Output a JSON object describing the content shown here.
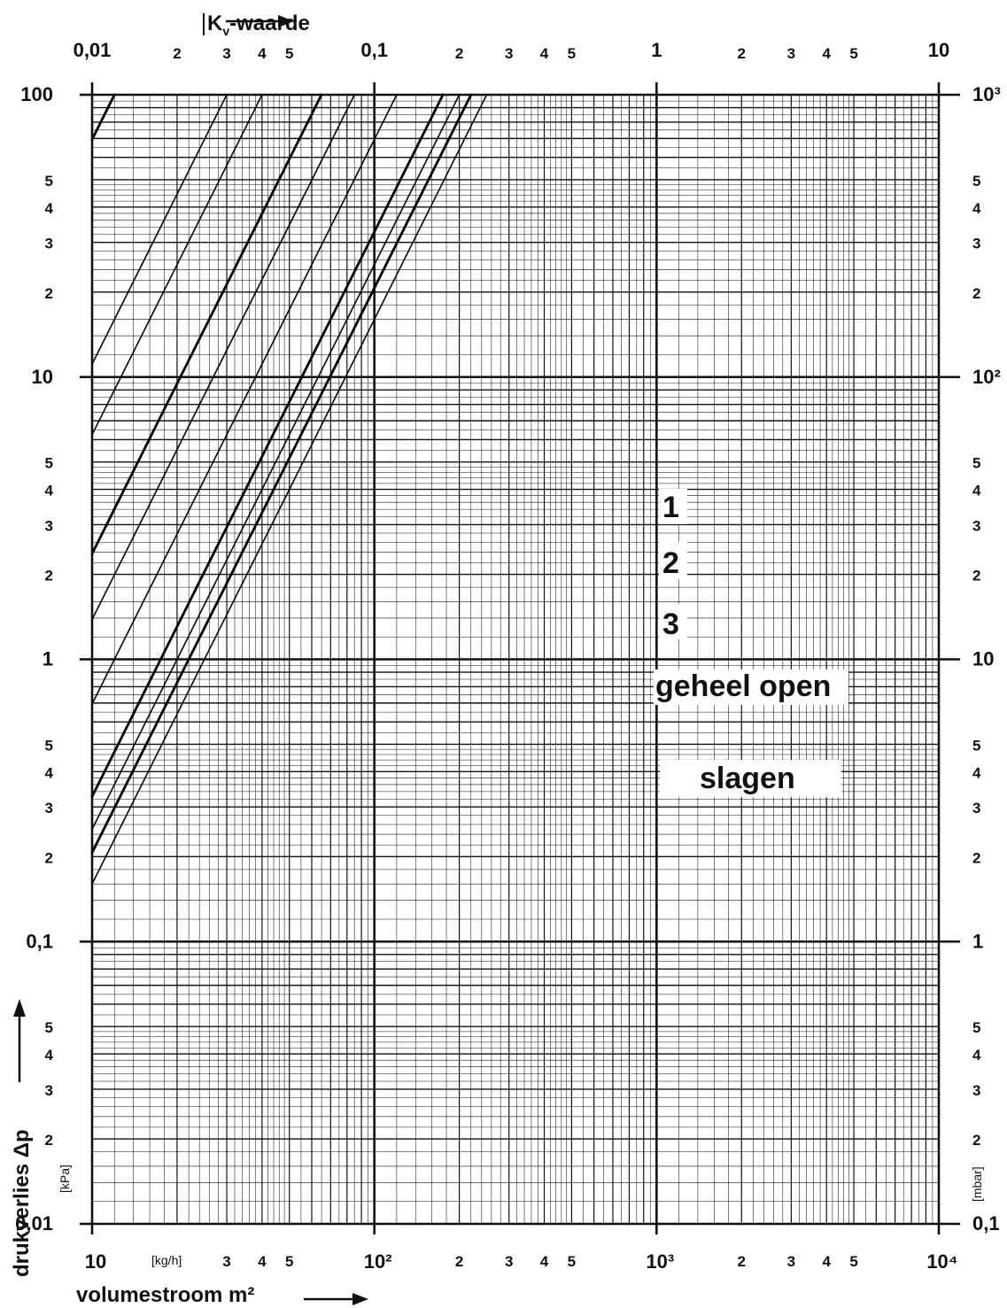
{
  "chart_data": {
    "type": "line",
    "x_scale": "log",
    "y_scale": "log",
    "grid": true,
    "x_bottom": {
      "title": "volumestroom m²",
      "unit": "[kg/h]",
      "range": [
        10,
        10000
      ],
      "tick_labels": [
        {
          "v": 10,
          "t": "10"
        },
        {
          "v": 30,
          "t": "3"
        },
        {
          "v": 40,
          "t": "4"
        },
        {
          "v": 50,
          "t": "5"
        },
        {
          "v": 100,
          "t": "10²"
        },
        {
          "v": 200,
          "t": "2"
        },
        {
          "v": 300,
          "t": "3"
        },
        {
          "v": 400,
          "t": "4"
        },
        {
          "v": 500,
          "t": "5"
        },
        {
          "v": 1000,
          "t": "10³"
        },
        {
          "v": 2000,
          "t": "2"
        },
        {
          "v": 3000,
          "t": "3"
        },
        {
          "v": 4000,
          "t": "4"
        },
        {
          "v": 5000,
          "t": "5"
        },
        {
          "v": 10000,
          "t": "10⁴"
        }
      ]
    },
    "x_top": {
      "title": "Kv-waarde",
      "range": [
        0.01,
        10
      ],
      "tick_labels": [
        {
          "v": 0.01,
          "t": "0,01"
        },
        {
          "v": 0.02,
          "t": "2"
        },
        {
          "v": 0.03,
          "t": "3"
        },
        {
          "v": 0.04,
          "t": "4"
        },
        {
          "v": 0.05,
          "t": "5"
        },
        {
          "v": 0.1,
          "t": "0,1"
        },
        {
          "v": 0.2,
          "t": "2"
        },
        {
          "v": 0.3,
          "t": "3"
        },
        {
          "v": 0.4,
          "t": "4"
        },
        {
          "v": 0.5,
          "t": "5"
        },
        {
          "v": 1,
          "t": "1"
        },
        {
          "v": 2,
          "t": "2"
        },
        {
          "v": 3,
          "t": "3"
        },
        {
          "v": 4,
          "t": "4"
        },
        {
          "v": 5,
          "t": "5"
        },
        {
          "v": 10,
          "t": "10"
        }
      ]
    },
    "y_left": {
      "title": "drukverlies Δp",
      "unit": "[kPa]",
      "range": [
        0.01,
        100
      ],
      "tick_labels": [
        {
          "v": 100,
          "t": "100"
        },
        {
          "v": 50,
          "t": "5"
        },
        {
          "v": 40,
          "t": "4"
        },
        {
          "v": 30,
          "t": "3"
        },
        {
          "v": 20,
          "t": "2"
        },
        {
          "v": 10,
          "t": "10"
        },
        {
          "v": 5,
          "t": "5"
        },
        {
          "v": 4,
          "t": "4"
        },
        {
          "v": 3,
          "t": "3"
        },
        {
          "v": 2,
          "t": "2"
        },
        {
          "v": 1,
          "t": "1"
        },
        {
          "v": 0.5,
          "t": "5"
        },
        {
          "v": 0.4,
          "t": "4"
        },
        {
          "v": 0.3,
          "t": "3"
        },
        {
          "v": 0.2,
          "t": "2"
        },
        {
          "v": 0.1,
          "t": "0,1"
        },
        {
          "v": 0.05,
          "t": "5"
        },
        {
          "v": 0.04,
          "t": "4"
        },
        {
          "v": 0.03,
          "t": "3"
        },
        {
          "v": 0.02,
          "t": "2"
        },
        {
          "v": 0.01,
          "t": "0,01"
        }
      ]
    },
    "y_right": {
      "unit": "[mbar]",
      "range": [
        0.1,
        1000
      ],
      "tick_labels": [
        {
          "v": 1000,
          "t": "10³"
        },
        {
          "v": 500,
          "t": "5"
        },
        {
          "v": 400,
          "t": "4"
        },
        {
          "v": 300,
          "t": "3"
        },
        {
          "v": 200,
          "t": "2"
        },
        {
          "v": 100,
          "t": "10²"
        },
        {
          "v": 50,
          "t": "5"
        },
        {
          "v": 40,
          "t": "4"
        },
        {
          "v": 30,
          "t": "3"
        },
        {
          "v": 20,
          "t": "2"
        },
        {
          "v": 10,
          "t": "10"
        },
        {
          "v": 5,
          "t": "5"
        },
        {
          "v": 4,
          "t": "4"
        },
        {
          "v": 3,
          "t": "3"
        },
        {
          "v": 2,
          "t": "2"
        },
        {
          "v": 1,
          "t": "1"
        },
        {
          "v": 0.5,
          "t": "5"
        },
        {
          "v": 0.4,
          "t": "4"
        },
        {
          "v": 0.3,
          "t": "3"
        },
        {
          "v": 0.2,
          "t": "2"
        },
        {
          "v": 0.1,
          "t": "0,1"
        }
      ]
    },
    "series": [
      {
        "kv": 0.012,
        "bold": true
      },
      {
        "kv": 0.03,
        "bold": false
      },
      {
        "kv": 0.04,
        "bold": false
      },
      {
        "kv": 0.065,
        "bold": true
      },
      {
        "kv": 0.085,
        "bold": false
      },
      {
        "kv": 0.12,
        "bold": false
      },
      {
        "kv": 0.175,
        "bold": true
      },
      {
        "kv": 0.2,
        "bold": false
      },
      {
        "kv": 0.22,
        "bold": true
      },
      {
        "kv": 0.25,
        "bold": false
      }
    ],
    "annotations": [
      {
        "text": "1",
        "kind": "turns"
      },
      {
        "text": "2",
        "kind": "turns"
      },
      {
        "text": "3",
        "kind": "turns"
      },
      {
        "text": "geheel open",
        "kind": "label"
      },
      {
        "text": "slagen",
        "kind": "label"
      }
    ]
  }
}
